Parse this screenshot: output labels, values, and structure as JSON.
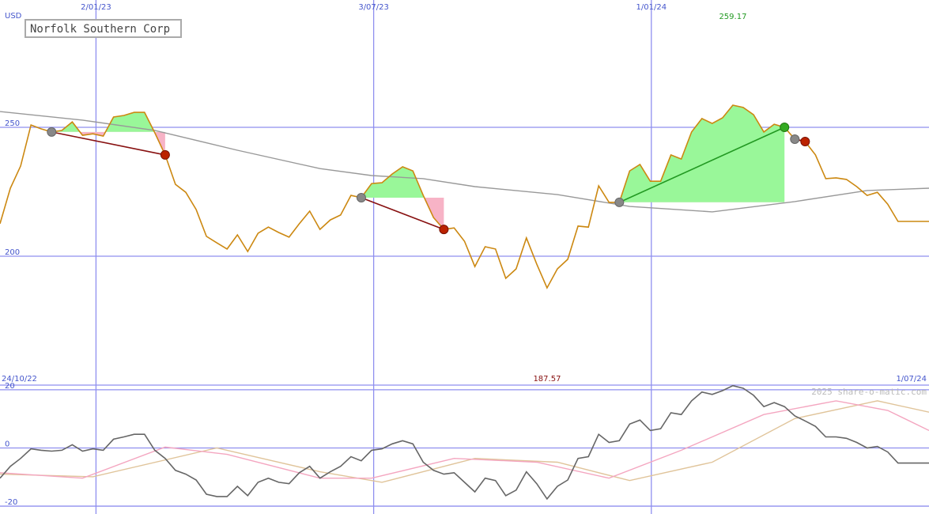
{
  "chart_data": [
    {
      "type": "line",
      "title": "Norfolk Southern Corp",
      "y_label": "USD",
      "date_range": [
        "24/10/22",
        "1/07/24"
      ],
      "xlim": [
        0,
        90
      ],
      "xticks": [
        {
          "value": 9.3,
          "label": "2/01/23"
        },
        {
          "value": 36.2,
          "label": "3/07/23"
        },
        {
          "value": 63.1,
          "label": "1/01/24"
        }
      ],
      "ylim": [
        150,
        299.4
      ],
      "yticks": [
        200,
        250
      ],
      "grid": true,
      "high": 259.17,
      "low": 187.57,
      "series": [
        {
          "color": "#cc8811",
          "values": [
            212.6,
            226.4,
            235.0,
            250.9,
            249.4,
            248.2,
            248.8,
            252.1,
            246.9,
            247.5,
            246.6,
            254.0,
            254.6,
            255.8,
            255.8,
            247.9,
            239.3,
            227.9,
            224.8,
            218.1,
            207.7,
            205.2,
            202.8,
            208.3,
            201.8,
            208.9,
            211.3,
            209.2,
            207.4,
            212.6,
            217.5,
            210.4,
            214.1,
            216.0,
            223.6,
            222.7,
            228.2,
            228.5,
            231.9,
            234.7,
            233.1,
            223.6,
            215.0,
            210.4,
            211.0,
            205.8,
            196.0,
            203.7,
            202.8,
            191.4,
            195.1,
            207.1,
            196.9,
            187.7,
            195.1,
            198.8,
            211.7,
            211.3,
            227.3,
            220.9,
            220.9,
            233.1,
            235.6,
            229.1,
            229.1,
            239.3,
            237.7,
            248.2,
            253.4,
            251.5,
            253.7,
            258.6,
            257.7,
            254.9,
            248.2,
            251.2,
            250.0,
            245.4,
            244.5,
            239.3,
            230.1,
            230.4,
            229.8,
            227.0,
            223.6,
            224.8,
            220.2,
            213.5,
            213.5,
            213.5,
            213.5
          ]
        },
        {
          "color": "#999999",
          "x": [
            0,
            8,
            15,
            23,
            31,
            36,
            41,
            46,
            54,
            61,
            69,
            77,
            84,
            90
          ],
          "values": [
            256.1,
            252.8,
            248.8,
            241.1,
            234.0,
            231.3,
            230.1,
            227.0,
            223.9,
            219.3,
            217.2,
            221.2,
            225.5,
            226.4
          ]
        }
      ],
      "signals": [
        {
          "start": 5,
          "end": 16
        },
        {
          "start": 35,
          "end": 43
        },
        {
          "start": 60,
          "end": 76
        },
        {
          "start": 77,
          "end": 78
        }
      ]
    },
    {
      "type": "line",
      "watermark": "2025 share-o-matic.com",
      "xlim": [
        0,
        90
      ],
      "ylim": [
        -22.7,
        21.6
      ],
      "yticks": [
        -20,
        0,
        20
      ],
      "grid": true,
      "series": [
        {
          "color": "#666666",
          "values": [
            -10.4,
            -6.3,
            -3.6,
            -0.3,
            -0.8,
            -1.1,
            -0.8,
            1.1,
            -1.1,
            -0.3,
            -0.8,
            3.0,
            3.8,
            4.7,
            4.7,
            -0.8,
            -3.6,
            -7.7,
            -9.0,
            -11.0,
            -15.9,
            -16.7,
            -16.7,
            -13.2,
            -16.4,
            -11.8,
            -10.4,
            -11.8,
            -12.3,
            -8.5,
            -6.3,
            -10.4,
            -8.2,
            -6.3,
            -3.0,
            -4.4,
            -0.8,
            -0.3,
            1.4,
            2.5,
            1.4,
            -4.9,
            -7.7,
            -9.0,
            -8.5,
            -11.8,
            -15.1,
            -10.4,
            -11.2,
            -16.4,
            -14.5,
            -8.2,
            -12.3,
            -17.5,
            -13.2,
            -11.0,
            -3.6,
            -3.0,
            4.7,
            1.9,
            2.5,
            8.2,
            9.6,
            6.0,
            6.6,
            12.1,
            11.5,
            16.2,
            19.2,
            18.4,
            19.7,
            21.4,
            20.5,
            18.1,
            14.2,
            15.6,
            14.2,
            11.0,
            9.3,
            7.4,
            3.8,
            3.8,
            3.3,
            1.9,
            0,
            0.5,
            -1.4,
            -5.2,
            -5.2,
            -5.2,
            -5.2
          ]
        },
        {
          "color": "#f4a6c0",
          "x": [
            0,
            8,
            16,
            22,
            31,
            36,
            44,
            52,
            59,
            66,
            74,
            81,
            86,
            90
          ],
          "values": [
            -8.5,
            -10.4,
            0.3,
            -2.2,
            -10.4,
            -10.4,
            -3.6,
            -4.9,
            -10.4,
            -0.8,
            11.5,
            16.2,
            12.9,
            6.0
          ]
        },
        {
          "color": "#e0c49a",
          "x": [
            0,
            9,
            21,
            31,
            37,
            46,
            54,
            61,
            69,
            77,
            85,
            90
          ],
          "values": [
            -9.0,
            -9.9,
            0,
            -8.2,
            -11.8,
            -3.6,
            -4.9,
            -11.2,
            -4.9,
            10.1,
            16.2,
            12.3
          ]
        }
      ]
    }
  ]
}
